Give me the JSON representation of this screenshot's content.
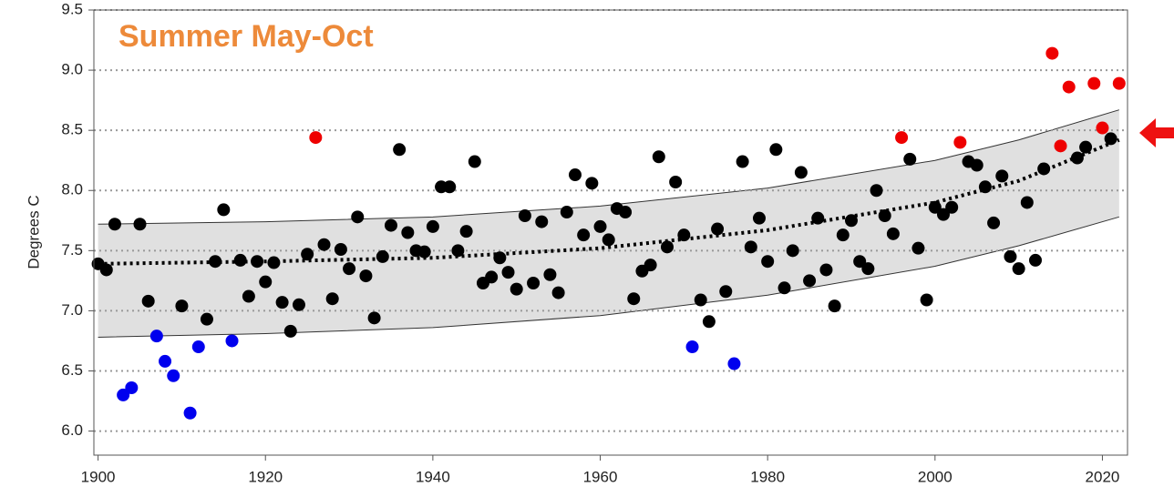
{
  "chart_data": {
    "type": "scatter",
    "title": "Summer May-Oct",
    "y_label": "Degrees C",
    "xlim": [
      1899.5,
      2023
    ],
    "ylim": [
      5.8,
      9.5
    ],
    "xticks": [
      1900,
      1920,
      1940,
      1960,
      1980,
      2000,
      2020
    ],
    "yticks": [
      {
        "value": 6,
        "label": "6.0"
      },
      {
        "value": 6.5,
        "label": "6.5"
      },
      {
        "value": 7,
        "label": "7.0"
      },
      {
        "value": 7.5,
        "label": "7.5"
      },
      {
        "value": 8,
        "label": "8.0"
      },
      {
        "value": 8.5,
        "label": "8.5"
      },
      {
        "value": 9,
        "label": "9.0"
      },
      {
        "value": 9.5,
        "label": "9.5"
      }
    ],
    "grid": true,
    "band": {
      "color": "#e0e0e0",
      "x": [
        1900,
        1920,
        1940,
        1960,
        1980,
        2000,
        2010,
        2022
      ],
      "upper": [
        7.72,
        7.74,
        7.78,
        7.87,
        8.02,
        8.25,
        8.42,
        8.67
      ],
      "lower": [
        6.78,
        6.81,
        6.86,
        6.96,
        7.13,
        7.37,
        7.54,
        7.78
      ]
    },
    "trend": {
      "color": "#000000",
      "x": [
        1900,
        1920,
        1940,
        1960,
        1980,
        2000,
        2010,
        2022
      ],
      "values": [
        7.39,
        7.41,
        7.44,
        7.52,
        7.67,
        7.9,
        8.08,
        8.42
      ]
    },
    "series": [
      {
        "color": "#000000",
        "x": [
          1900,
          1901,
          1902,
          1905,
          1906,
          1910,
          1913,
          1914,
          1915,
          1917,
          1918,
          1919,
          1920,
          1921,
          1922,
          1923,
          1924,
          1925,
          1927,
          1928,
          1929,
          1930,
          1931,
          1932,
          1933,
          1934,
          1935,
          1936,
          1937,
          1938,
          1939,
          1940,
          1941,
          1942,
          1943,
          1944,
          1945,
          1946,
          1947,
          1948,
          1949,
          1950,
          1951,
          1952,
          1953,
          1954,
          1955,
          1956,
          1957,
          1958,
          1959,
          1960,
          1961,
          1962,
          1963,
          1964,
          1965,
          1966,
          1967,
          1968,
          1969,
          1970,
          1972,
          1973,
          1974,
          1975,
          1977,
          1978,
          1979,
          1980,
          1981,
          1982,
          1983,
          1984,
          1985,
          1986,
          1987,
          1988,
          1989,
          1990,
          1991,
          1992,
          1993,
          1994,
          1995,
          1997,
          1998,
          1999,
          2000,
          2001,
          2002,
          2004,
          2005,
          2006,
          2007,
          2008,
          2009,
          2010,
          2011,
          2012,
          2013,
          2017,
          2018,
          2021
        ],
        "values": [
          7.39,
          7.34,
          7.72,
          7.72,
          7.08,
          7.04,
          6.93,
          7.41,
          7.84,
          7.42,
          7.12,
          7.41,
          7.24,
          7.4,
          7.07,
          6.83,
          7.05,
          7.47,
          7.55,
          7.1,
          7.51,
          7.35,
          7.78,
          7.29,
          6.94,
          7.45,
          7.71,
          8.34,
          7.65,
          7.5,
          7.49,
          7.7,
          8.03,
          8.03,
          7.5,
          7.66,
          8.24,
          7.23,
          7.28,
          7.44,
          7.32,
          7.18,
          7.79,
          7.23,
          7.74,
          7.3,
          7.15,
          7.82,
          8.13,
          7.63,
          8.06,
          7.7,
          7.59,
          7.85,
          7.82,
          7.1,
          7.33,
          7.38,
          8.28,
          7.53,
          8.07,
          7.63,
          7.09,
          6.91,
          7.68,
          7.16,
          8.24,
          7.53,
          7.77,
          7.41,
          8.34,
          7.19,
          7.5,
          8.15,
          7.25,
          7.77,
          7.34,
          7.04,
          7.63,
          7.75,
          7.41,
          7.35,
          8.0,
          7.79,
          7.64,
          8.26,
          7.52,
          7.09,
          7.86,
          7.8,
          7.86,
          8.24,
          8.21,
          8.03,
          7.73,
          8.12,
          7.45,
          7.35,
          7.9,
          7.42,
          8.18,
          8.27,
          8.36,
          8.43
        ]
      },
      {
        "color": "#0000ee",
        "x": [
          1903,
          1904,
          1907,
          1908,
          1909,
          1911,
          1912,
          1916,
          1971,
          1976
        ],
        "values": [
          6.3,
          6.36,
          6.79,
          6.58,
          6.46,
          6.15,
          6.7,
          6.75,
          6.7,
          6.56
        ]
      },
      {
        "color": "#ee0000",
        "x": [
          1926,
          1996,
          2003,
          2014,
          2015,
          2016,
          2019,
          2020,
          2022
        ],
        "values": [
          8.44,
          8.44,
          8.4,
          9.14,
          8.37,
          8.86,
          8.89,
          8.52,
          8.89
        ]
      }
    ]
  }
}
